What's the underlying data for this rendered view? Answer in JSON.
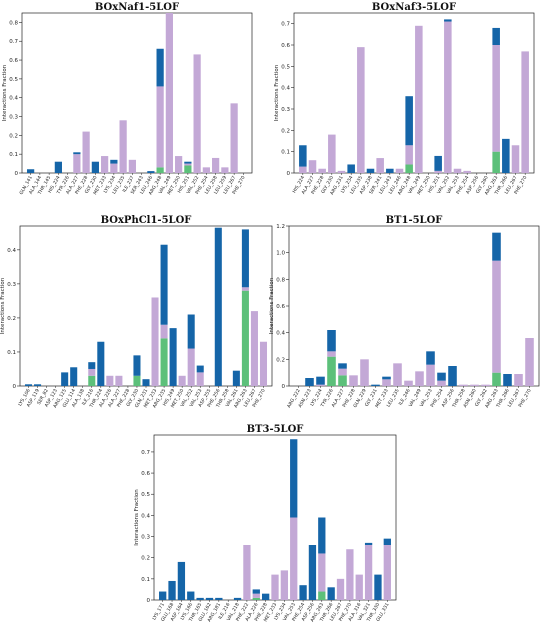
{
  "colors": {
    "green": "#5cc07a",
    "purple": "#c3a8d6",
    "blue": "#1565a8"
  },
  "chart_data": [
    {
      "type": "bar",
      "title": "BOxNaf1-5LOF",
      "ylabel": "Interactions Fraction",
      "ylim": [
        0,
        0.85
      ],
      "yticks": [
        0,
        0.1,
        0.2,
        0.3,
        0.4,
        0.5,
        0.6,
        0.7,
        0.8
      ],
      "categories": [
        "GLN_141",
        "ALA_144",
        "THR_145",
        "HIS_224",
        "TYR_226",
        "ALA_227",
        "PHE_228",
        "GLY_230",
        "MET_233",
        "LYS_234",
        "LEU_235",
        "ILE_237",
        "SER_243",
        "LEU_246",
        "ARG_248",
        "VAL_249",
        "MET_250",
        "HIS_251",
        "VAL_252",
        "PHE_254",
        "LEU_258",
        "LEU_259",
        "LEU_267",
        "PHE_270"
      ],
      "series": [
        {
          "name": "",
          "values": [
            0,
            0,
            0,
            0,
            0,
            0,
            0,
            0,
            0,
            0,
            0,
            0,
            0,
            0,
            0.03,
            0,
            0,
            0.04,
            0,
            0,
            0,
            0,
            0,
            0
          ]
        },
        {
          "name": "",
          "values": [
            0,
            0,
            0,
            0,
            0,
            0.1,
            0.22,
            0,
            0.09,
            0.05,
            0.28,
            0.07,
            0,
            0,
            0.43,
            0.85,
            0.09,
            0.01,
            0.63,
            0.03,
            0.08,
            0.03,
            0.37,
            0
          ]
        },
        {
          "name": "",
          "values": [
            0.02,
            0,
            0,
            0.06,
            0,
            0.01,
            0,
            0.06,
            0,
            0.02,
            0,
            0,
            0,
            0.01,
            0.2,
            0,
            0,
            0.01,
            0,
            0,
            0,
            0,
            0,
            0
          ]
        }
      ]
    },
    {
      "type": "bar",
      "title": "BOxNaf3-5LOF",
      "ylabel": "Interactions Fraction",
      "ylim": [
        0,
        0.75
      ],
      "yticks": [
        0,
        0.1,
        0.2,
        0.3,
        0.4,
        0.5,
        0.6,
        0.7
      ],
      "categories": [
        "HIS_224",
        "ALA_227",
        "PHE_228",
        "GLY_230",
        "ARG_231",
        "LYS_234",
        "LEU_235",
        "ASP_238",
        "SER_241",
        "LEU_243",
        "LEU_246",
        "ARG_248",
        "VAL_249",
        "MET_250",
        "HIS_251",
        "VAL_252",
        "VAL_253",
        "PHE_254",
        "ASP_256",
        "GLY_260",
        "ARG_263",
        "THR_266",
        "LEU_267",
        "PHE_270"
      ],
      "series": [
        {
          "name": "",
          "values": [
            0,
            0,
            0,
            0,
            0,
            0,
            0,
            0,
            0,
            0,
            0,
            0.04,
            0,
            0,
            0,
            0,
            0,
            0,
            0,
            0,
            0.1,
            0,
            0,
            0
          ]
        },
        {
          "name": "",
          "values": [
            0.03,
            0.06,
            0.02,
            0.18,
            0.01,
            0,
            0.59,
            0,
            0.07,
            0,
            0.02,
            0.09,
            0.69,
            0,
            0.01,
            0.71,
            0.02,
            0.01,
            0,
            0,
            0.5,
            0,
            0.13,
            0.57
          ]
        },
        {
          "name": "",
          "values": [
            0.1,
            0,
            0,
            0,
            0,
            0.04,
            0,
            0.02,
            0,
            0.02,
            0,
            0.23,
            0,
            0,
            0.07,
            0.01,
            0,
            0,
            0,
            0,
            0.08,
            0.16,
            0,
            0
          ]
        }
      ]
    },
    {
      "type": "bar",
      "title": "BOxPhCl1-5LOF",
      "ylabel": "Interactions Fraction",
      "ylim": [
        0,
        0.47
      ],
      "yticks": [
        0,
        0.1,
        0.2,
        0.3,
        0.4
      ],
      "categories": [
        "LYS_106",
        "ASP_119",
        "SER_82",
        "ASP_123",
        "ARG_125",
        "GLU_114",
        "ALA_138",
        "ILE_216",
        "THR_224",
        "ALA_226",
        "ALA_227",
        "PHE_228",
        "GLY_230",
        "GLN_231",
        "MET_233",
        "ARG_235",
        "HIS_249",
        "MET_250",
        "VAL_252",
        "VAL_253",
        "ASP_255",
        "PHE_256",
        "THR_258",
        "VAL_261",
        "ARG_263",
        "LEU_267",
        "PHE_270"
      ],
      "series": [
        {
          "name": "",
          "values": [
            0,
            0,
            0,
            0,
            0,
            0,
            0,
            0.03,
            0,
            0,
            0,
            0,
            0.03,
            0,
            0,
            0.14,
            0,
            0,
            0,
            0,
            0,
            0,
            0,
            0,
            0.28,
            0,
            0
          ]
        },
        {
          "name": "",
          "values": [
            0,
            0,
            0,
            0,
            0,
            0,
            0,
            0.02,
            0,
            0.03,
            0.03,
            0,
            0,
            0,
            0.26,
            0.04,
            0,
            0.03,
            0.11,
            0.04,
            0,
            0,
            0,
            0,
            0.01,
            0.22,
            0.13
          ]
        },
        {
          "name": "",
          "values": [
            0.005,
            0.005,
            0,
            0,
            0.04,
            0.055,
            0,
            0.02,
            0.13,
            0,
            0,
            0,
            0.06,
            0.02,
            0,
            0.235,
            0.17,
            0,
            0.1,
            0.02,
            0,
            0.465,
            0,
            0.045,
            0.17,
            0,
            0
          ]
        }
      ]
    },
    {
      "type": "bar",
      "title": "BT1-5LOF",
      "ylabel": "Interactions Fraction",
      "ylim": [
        0,
        1.2
      ],
      "yticks": [
        0,
        0.2,
        0.4,
        0.6,
        0.8,
        1.0,
        1.2
      ],
      "categories": [
        "ARG_222",
        "ASN_223",
        "LYS_224",
        "TYR_226",
        "ALA_227",
        "PHE_228",
        "GLN_229",
        "GLY_231",
        "MET_233",
        "LEU_235",
        "ILE_246",
        "VAL_249",
        "VAL_253",
        "PHE_254",
        "ASP_256",
        "THR_258",
        "ASN_260",
        "GLY_262",
        "ARG_263",
        "THR_266",
        "LEU_267",
        "PHE_270"
      ],
      "series": [
        {
          "name": "",
          "values": [
            0,
            0,
            0,
            0.22,
            0.08,
            0,
            0,
            0,
            0,
            0,
            0,
            0,
            0,
            0,
            0,
            0,
            0,
            0,
            0.1,
            0,
            0,
            0
          ]
        },
        {
          "name": "",
          "values": [
            0,
            0,
            0.01,
            0.04,
            0.05,
            0.08,
            0.2,
            0,
            0.05,
            0.17,
            0.04,
            0.11,
            0.16,
            0.04,
            0,
            0.01,
            0.01,
            0.01,
            0.84,
            0,
            0.09,
            0.36
          ]
        },
        {
          "name": "",
          "values": [
            0,
            0.06,
            0.06,
            0.16,
            0.04,
            0,
            0,
            0.01,
            0.02,
            0,
            0,
            0,
            0.1,
            0.06,
            0.15,
            0,
            0,
            0,
            0.21,
            0.09,
            0,
            0
          ]
        }
      ]
    },
    {
      "type": "bar",
      "title": "BT3-5LOF",
      "ylabel": "Interactions Fraction",
      "ylim": [
        0,
        0.78
      ],
      "yticks": [
        0,
        0.1,
        0.2,
        0.3,
        0.4,
        0.5,
        0.6,
        0.7
      ],
      "categories": [
        "LYS_171",
        "GLU_168",
        "ASP_164",
        "LYS_166",
        "THR_165",
        "GLU_162",
        "ARG_181",
        "ILE_216",
        "VAL_218",
        "PHE_222",
        "ALA_226",
        "PHE_228",
        "MET_233",
        "LYS_234",
        "VAL_253",
        "PHE_254",
        "ASP_256",
        "ARG_263",
        "THR_266",
        "LEU_267",
        "PHE_270",
        "ALA_316",
        "VAL_321",
        "THR_330",
        "GLU_331"
      ],
      "series": [
        {
          "name": "",
          "values": [
            0,
            0,
            0,
            0,
            0,
            0,
            0,
            0,
            0,
            0,
            0.01,
            0,
            0,
            0,
            0,
            0,
            0,
            0.04,
            0,
            0,
            0,
            0,
            0,
            0,
            0
          ]
        },
        {
          "name": "",
          "values": [
            0,
            0,
            0,
            0,
            0,
            0,
            0,
            0,
            0,
            0.26,
            0.02,
            0,
            0.12,
            0.14,
            0.39,
            0,
            0,
            0.18,
            0,
            0.1,
            0.24,
            0.12,
            0.26,
            0,
            0.26
          ]
        },
        {
          "name": "",
          "values": [
            0.04,
            0.09,
            0.18,
            0.04,
            0.01,
            0.01,
            0.01,
            0,
            0.01,
            0,
            0.02,
            0.03,
            0,
            0,
            0.37,
            0.07,
            0.26,
            0.17,
            0.06,
            0,
            0,
            0,
            0.01,
            0.12,
            0.03
          ]
        }
      ]
    }
  ]
}
